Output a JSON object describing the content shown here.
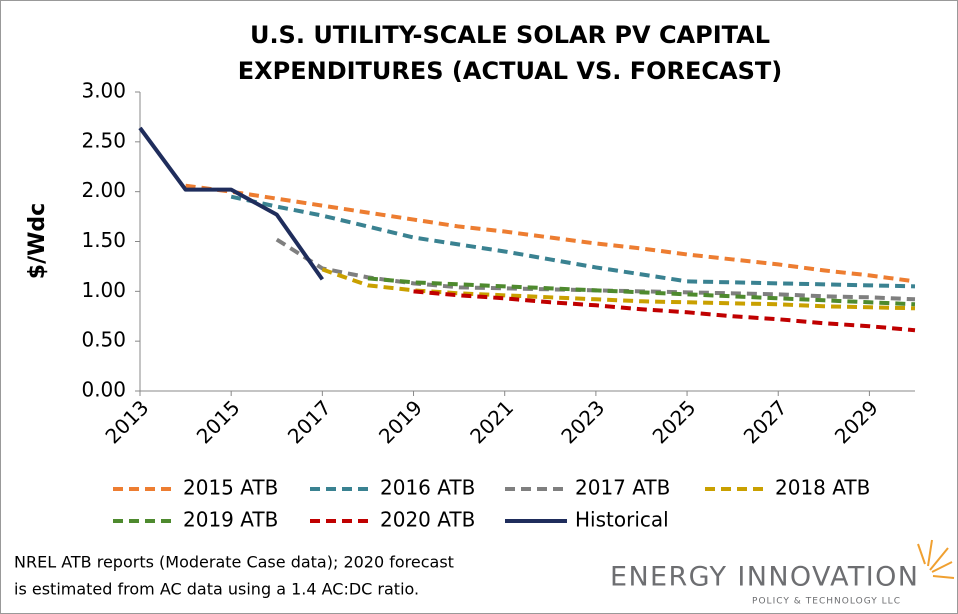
{
  "chart_data": {
    "type": "line",
    "title": [
      "U.S. UTILITY-SCALE SOLAR PV CAPITAL",
      "EXPENDITURES (ACTUAL VS. FORECAST)"
    ],
    "y_label": "$/Wdc",
    "x": [
      2013,
      2014,
      2015,
      2016,
      2017,
      2018,
      2019,
      2020,
      2021,
      2022,
      2023,
      2024,
      2025,
      2026,
      2027,
      2028,
      2029,
      2030
    ],
    "xlim": [
      2013,
      2030
    ],
    "xticks": [
      2013,
      2015,
      2017,
      2019,
      2021,
      2023,
      2025,
      2027,
      2029
    ],
    "ylim": [
      0,
      3
    ],
    "yticks": [
      {
        "value": 0,
        "label": "0.00"
      },
      {
        "value": 0.5,
        "label": "0.50"
      },
      {
        "value": 1,
        "label": "1.00"
      },
      {
        "value": 1.5,
        "label": "1.50"
      },
      {
        "value": 2,
        "label": "2.00"
      },
      {
        "value": 2.5,
        "label": "2.50"
      },
      {
        "value": 3,
        "label": "3.00"
      }
    ],
    "series": [
      {
        "name": "2015 ATB",
        "color": "#ED7D31",
        "dashed": true,
        "values": [
          null,
          2.06,
          2.0,
          1.93,
          1.86,
          1.79,
          1.72,
          1.65,
          1.6,
          1.54,
          1.48,
          1.43,
          1.37,
          1.32,
          1.27,
          1.21,
          1.16,
          1.1
        ]
      },
      {
        "name": "2016 ATB",
        "color": "#3A8291",
        "dashed": true,
        "values": [
          null,
          null,
          1.95,
          1.85,
          1.76,
          1.65,
          1.54,
          1.47,
          1.4,
          1.32,
          1.24,
          1.17,
          1.1,
          1.09,
          1.08,
          1.07,
          1.06,
          1.05
        ]
      },
      {
        "name": "2017 ATB",
        "color": "#7F7F7F",
        "dashed": true,
        "values": [
          null,
          null,
          null,
          1.52,
          1.23,
          1.14,
          1.08,
          1.04,
          1.03,
          1.02,
          1.01,
          1.0,
          0.99,
          0.98,
          0.97,
          0.95,
          0.94,
          0.92
        ]
      },
      {
        "name": "2018 ATB",
        "color": "#C9A000",
        "dashed": true,
        "values": [
          null,
          null,
          null,
          null,
          1.22,
          1.06,
          1.01,
          0.98,
          0.96,
          0.94,
          0.92,
          0.9,
          0.89,
          0.88,
          0.87,
          0.85,
          0.84,
          0.83
        ]
      },
      {
        "name": "2019 ATB",
        "color": "#4E8A2E",
        "dashed": true,
        "values": [
          null,
          null,
          null,
          null,
          null,
          1.13,
          1.09,
          1.07,
          1.05,
          1.03,
          1.01,
          0.99,
          0.97,
          0.95,
          0.93,
          0.91,
          0.89,
          0.87
        ]
      },
      {
        "name": "2020 ATB",
        "color": "#C00000",
        "dashed": true,
        "values": [
          null,
          null,
          null,
          null,
          null,
          null,
          1.0,
          0.96,
          0.93,
          0.89,
          0.86,
          0.82,
          0.79,
          0.75,
          0.72,
          0.68,
          0.65,
          0.61
        ]
      },
      {
        "name": "Historical",
        "color": "#1F2D5C",
        "dashed": false,
        "values": [
          2.64,
          2.02,
          2.02,
          1.77,
          1.12,
          null,
          null,
          null,
          null,
          null,
          null,
          null,
          null,
          null,
          null,
          null,
          null,
          null
        ]
      }
    ],
    "grid": false,
    "note": [
      "NREL ATB reports (Moderate Case data); 2020 forecast",
      "is estimated from AC data using a 1.4 AC:DC ratio."
    ],
    "logo": {
      "name": "ENERGY INNOVATION",
      "tagline": "POLICY & TECHNOLOGY LLC"
    }
  }
}
